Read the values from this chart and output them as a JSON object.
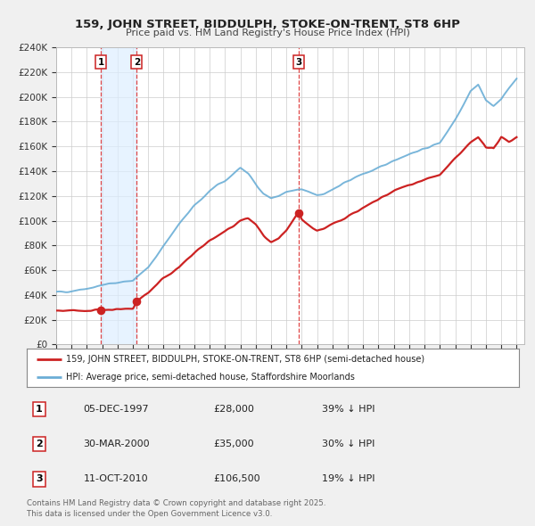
{
  "title": "159, JOHN STREET, BIDDULPH, STOKE-ON-TRENT, ST8 6HP",
  "subtitle": "Price paid vs. HM Land Registry's House Price Index (HPI)",
  "background_color": "#f0f0f0",
  "plot_bg_color": "#ffffff",
  "grid_color": "#cccccc",
  "red_line_color": "#cc2222",
  "blue_line_color": "#6baed6",
  "red_line_label": "159, JOHN STREET, BIDDULPH, STOKE-ON-TRENT, ST8 6HP (semi-detached house)",
  "blue_line_label": "HPI: Average price, semi-detached house, Staffordshire Moorlands",
  "sale_points": [
    {
      "date_year": 1997.92,
      "price": 28000,
      "label": "1"
    },
    {
      "date_year": 2000.25,
      "price": 35000,
      "label": "2"
    },
    {
      "date_year": 2010.79,
      "price": 106500,
      "label": "3"
    }
  ],
  "sale_table": [
    {
      "num": "1",
      "date": "05-DEC-1997",
      "price": "£28,000",
      "pct": "39% ↓ HPI"
    },
    {
      "num": "2",
      "date": "30-MAR-2000",
      "price": "£35,000",
      "pct": "30% ↓ HPI"
    },
    {
      "num": "3",
      "date": "11-OCT-2010",
      "price": "£106,500",
      "pct": "19% ↓ HPI"
    }
  ],
  "vline1_year": 1997.92,
  "vline2_year": 2000.25,
  "vline3_year": 2010.79,
  "shade_start": 1997.92,
  "shade_end": 2000.25,
  "ylim": [
    0,
    240000
  ],
  "xlim_start": 1995.0,
  "xlim_end": 2025.5,
  "hpi_anchors": [
    [
      1995.0,
      42000
    ],
    [
      1996.0,
      43500
    ],
    [
      1997.0,
      45500
    ],
    [
      1997.5,
      46500
    ],
    [
      1998.0,
      48000
    ],
    [
      1999.0,
      50000
    ],
    [
      2000.0,
      52000
    ],
    [
      2001.0,
      62000
    ],
    [
      2002.0,
      80000
    ],
    [
      2003.0,
      97000
    ],
    [
      2004.0,
      112000
    ],
    [
      2005.0,
      124000
    ],
    [
      2006.0,
      132000
    ],
    [
      2007.0,
      143000
    ],
    [
      2007.5,
      138000
    ],
    [
      2008.0,
      130000
    ],
    [
      2008.5,
      122000
    ],
    [
      2009.0,
      118000
    ],
    [
      2009.5,
      120000
    ],
    [
      2010.0,
      123000
    ],
    [
      2010.5,
      124000
    ],
    [
      2011.0,
      125000
    ],
    [
      2011.5,
      123000
    ],
    [
      2012.0,
      121000
    ],
    [
      2012.5,
      122000
    ],
    [
      2013.0,
      125000
    ],
    [
      2013.5,
      128000
    ],
    [
      2014.0,
      132000
    ],
    [
      2015.0,
      138000
    ],
    [
      2016.0,
      142000
    ],
    [
      2017.0,
      149000
    ],
    [
      2018.0,
      154000
    ],
    [
      2019.0,
      158000
    ],
    [
      2020.0,
      163000
    ],
    [
      2021.0,
      182000
    ],
    [
      2022.0,
      205000
    ],
    [
      2022.5,
      210000
    ],
    [
      2023.0,
      197000
    ],
    [
      2023.5,
      193000
    ],
    [
      2024.0,
      198000
    ],
    [
      2024.5,
      207000
    ],
    [
      2025.0,
      215000
    ]
  ],
  "price_anchors": [
    [
      1995.0,
      27000
    ],
    [
      1996.0,
      27200
    ],
    [
      1997.0,
      27500
    ],
    [
      1997.92,
      28000
    ],
    [
      1998.0,
      28100
    ],
    [
      1999.0,
      28500
    ],
    [
      2000.0,
      29000
    ],
    [
      2000.25,
      35000
    ],
    [
      2001.0,
      42000
    ],
    [
      2002.0,
      54000
    ],
    [
      2003.0,
      62000
    ],
    [
      2004.0,
      74000
    ],
    [
      2005.0,
      84000
    ],
    [
      2006.0,
      91000
    ],
    [
      2007.0,
      100000
    ],
    [
      2007.5,
      102000
    ],
    [
      2008.0,
      97000
    ],
    [
      2008.5,
      88000
    ],
    [
      2009.0,
      82000
    ],
    [
      2009.5,
      85000
    ],
    [
      2010.0,
      92000
    ],
    [
      2010.79,
      106500
    ],
    [
      2011.0,
      101000
    ],
    [
      2011.5,
      96000
    ],
    [
      2012.0,
      92000
    ],
    [
      2012.5,
      94000
    ],
    [
      2013.0,
      97000
    ],
    [
      2013.5,
      100000
    ],
    [
      2014.0,
      104000
    ],
    [
      2015.0,
      110000
    ],
    [
      2016.0,
      117000
    ],
    [
      2017.0,
      124000
    ],
    [
      2018.0,
      129000
    ],
    [
      2019.0,
      133000
    ],
    [
      2020.0,
      137000
    ],
    [
      2021.0,
      150000
    ],
    [
      2022.0,
      163000
    ],
    [
      2022.5,
      168000
    ],
    [
      2023.0,
      159000
    ],
    [
      2023.5,
      158000
    ],
    [
      2024.0,
      168000
    ],
    [
      2024.5,
      164000
    ],
    [
      2025.0,
      167000
    ]
  ],
  "footnote": "Contains HM Land Registry data © Crown copyright and database right 2025.\nThis data is licensed under the Open Government Licence v3.0."
}
